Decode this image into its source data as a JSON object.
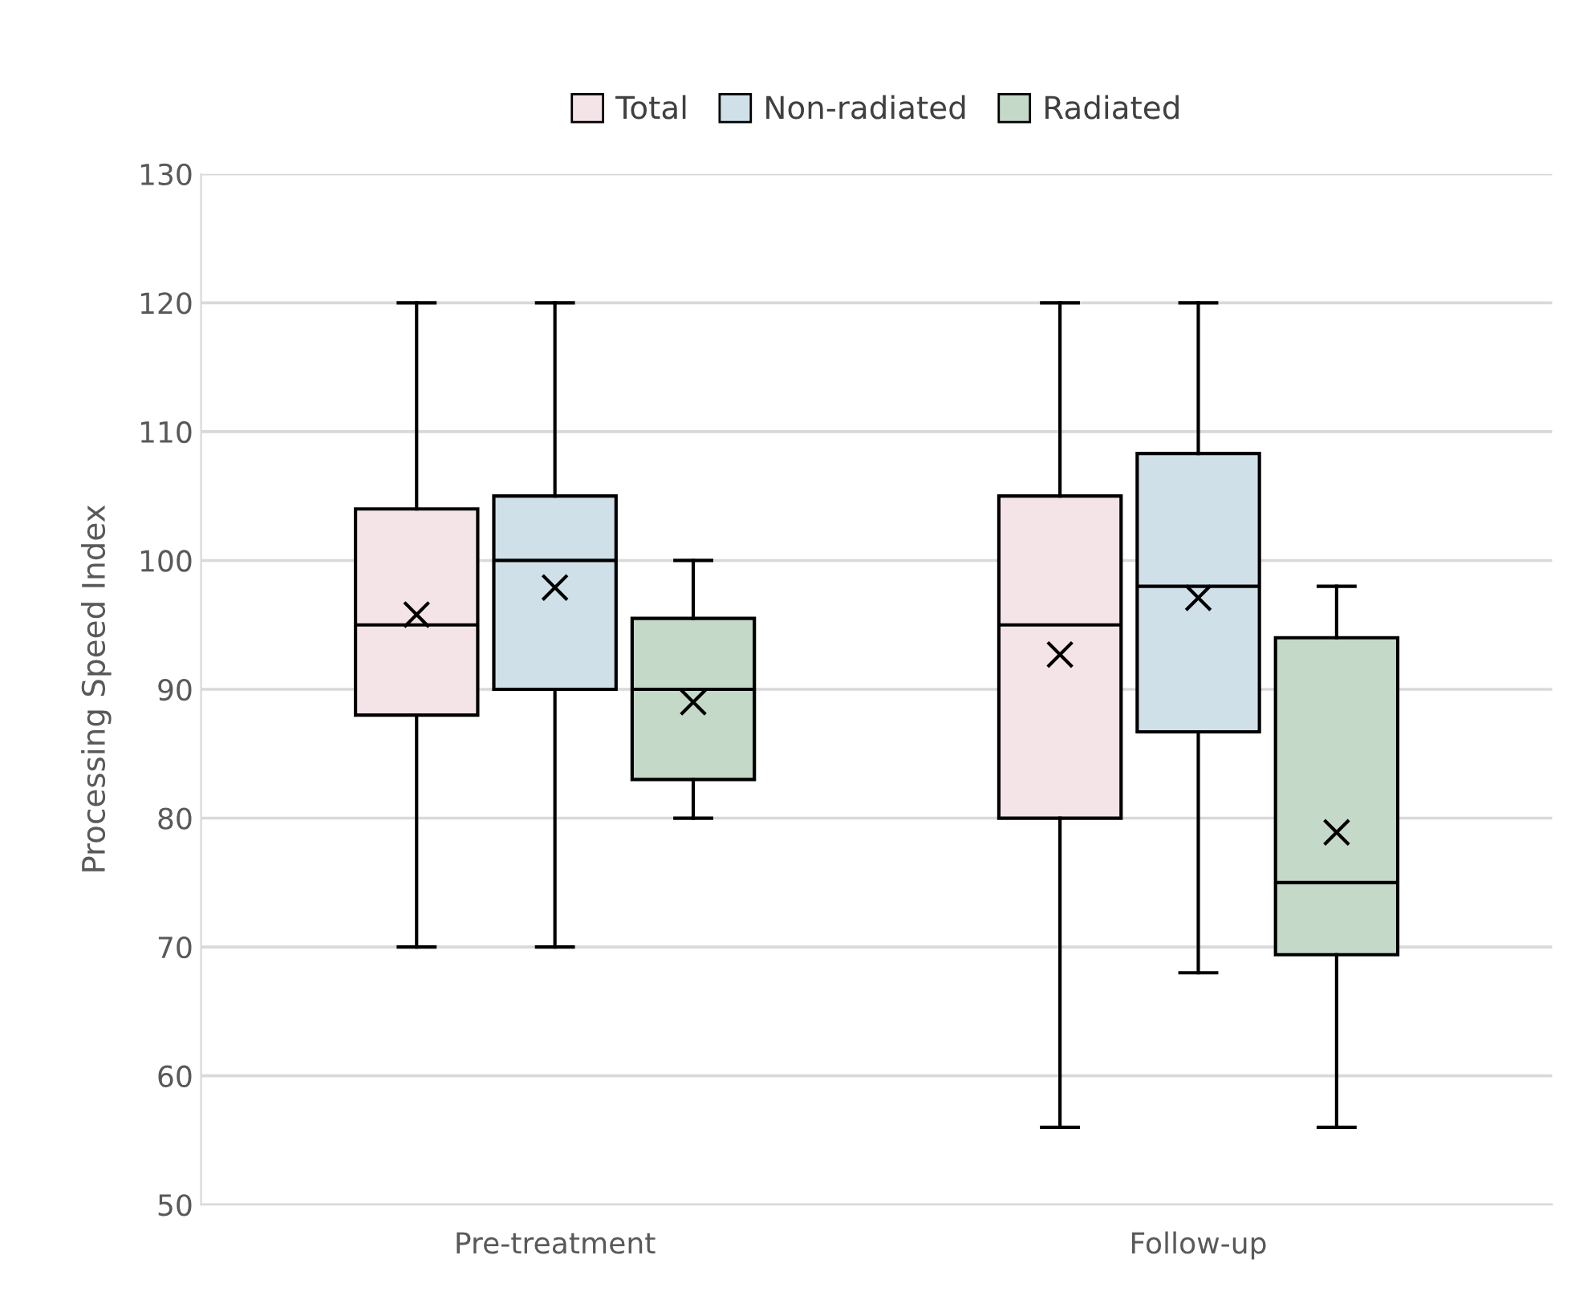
{
  "chart_data": {
    "type": "box",
    "ylabel": "Processing Speed Index",
    "categories": [
      "Pre-treatment",
      "Follow-up"
    ],
    "ylim": [
      50,
      130
    ],
    "yticks": [
      50,
      60,
      70,
      80,
      90,
      100,
      110,
      120,
      130
    ],
    "grid": "y",
    "legend": "top",
    "series": [
      {
        "name": "Total",
        "color": "#f4e4e8",
        "boxes": [
          {
            "low": 70,
            "q1": 88,
            "median": 95,
            "q3": 104,
            "high": 120,
            "mean": 95.8
          },
          {
            "low": 56,
            "q1": 80,
            "median": 95,
            "q3": 105,
            "high": 120,
            "mean": 92.7
          }
        ]
      },
      {
        "name": "Non-radiated",
        "color": "#d0e0e8",
        "boxes": [
          {
            "low": 70,
            "q1": 90,
            "median": 100,
            "q3": 105,
            "high": 120,
            "mean": 97.9
          },
          {
            "low": 68,
            "q1": 86.7,
            "median": 98,
            "q3": 108.3,
            "high": 120,
            "mean": 97.1
          }
        ]
      },
      {
        "name": "Radiated",
        "color": "#c4d9c8",
        "boxes": [
          {
            "low": 80,
            "q1": 83,
            "median": 90,
            "q3": 95.5,
            "high": 100,
            "mean": 89
          },
          {
            "low": 56,
            "q1": 69.4,
            "median": 75,
            "q3": 94,
            "high": 98,
            "mean": 78.9
          }
        ]
      }
    ]
  }
}
